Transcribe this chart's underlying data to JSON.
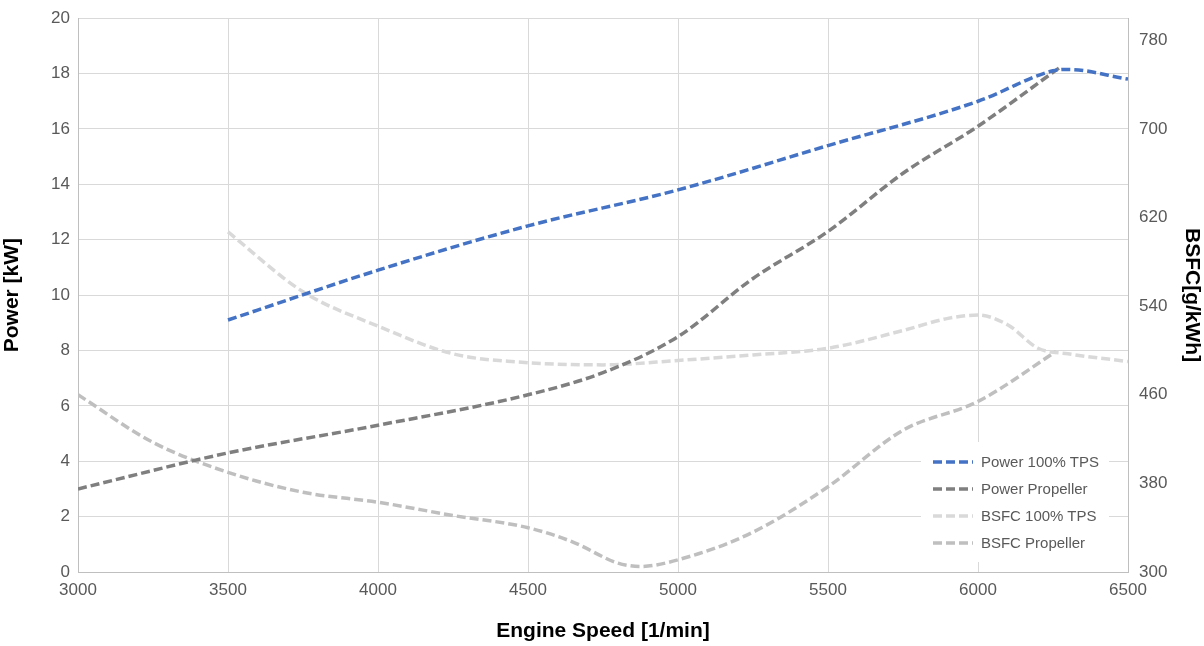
{
  "chart_data": {
    "type": "line",
    "xlabel": "Engine Speed [1/min]",
    "ylabel": "Power [kW]",
    "y2label": "BSFC[g/kWh]",
    "xlim": [
      3000,
      6500
    ],
    "xticks": [
      3000,
      3500,
      4000,
      4500,
      5000,
      5500,
      6000,
      6500
    ],
    "ylim": [
      0,
      20
    ],
    "yticks": [
      0,
      2,
      4,
      6,
      8,
      10,
      12,
      14,
      16,
      18,
      20
    ],
    "y2lim": [
      300,
      800
    ],
    "y2ticks": [
      300,
      380,
      460,
      540,
      620,
      700,
      780
    ],
    "grid": true,
    "legend": "bottom right",
    "marker": "none",
    "line_style": "dashed",
    "series": [
      {
        "name": "Power 100% TPS",
        "color": "#4472c4",
        "axis": "y",
        "x": [
          3500,
          4000,
          4500,
          5000,
          5500,
          6000,
          6250,
          6300,
          6500
        ],
        "values": [
          9.1,
          10.9,
          12.5,
          13.8,
          15.4,
          17.0,
          18.1,
          18.15,
          17.8
        ]
      },
      {
        "name": "Power Propeller",
        "color": "#7f7f7f",
        "axis": "y",
        "x": [
          3000,
          3500,
          4000,
          4500,
          4750,
          5000,
          5250,
          5500,
          5750,
          6000,
          6270
        ],
        "values": [
          3.0,
          4.3,
          5.3,
          6.4,
          7.2,
          8.5,
          10.6,
          12.3,
          14.4,
          16.1,
          18.2
        ]
      },
      {
        "name": "BSFC 100% TPS",
        "color": "#d9d9d9",
        "axis": "y2",
        "x": [
          3500,
          3750,
          4000,
          4250,
          4500,
          4750,
          5000,
          5250,
          5500,
          5750,
          5900,
          6000,
          6100,
          6200,
          6300,
          6500
        ],
        "values": [
          607,
          553,
          522,
          497,
          489,
          487,
          491,
          496,
          502,
          518,
          529,
          532,
          523,
          502,
          497,
          490
        ]
      },
      {
        "name": "BSFC Propeller",
        "color": "#bfbfbf",
        "axis": "y2",
        "x": [
          3000,
          3250,
          3500,
          3750,
          4000,
          4250,
          4500,
          4650,
          4800,
          4875,
          5000,
          5250,
          5500,
          5750,
          6000,
          6260
        ],
        "values": [
          460,
          417,
          390,
          372,
          363,
          351,
          340,
          327,
          308,
          305,
          311,
          336,
          377,
          428,
          454,
          499
        ]
      }
    ]
  }
}
